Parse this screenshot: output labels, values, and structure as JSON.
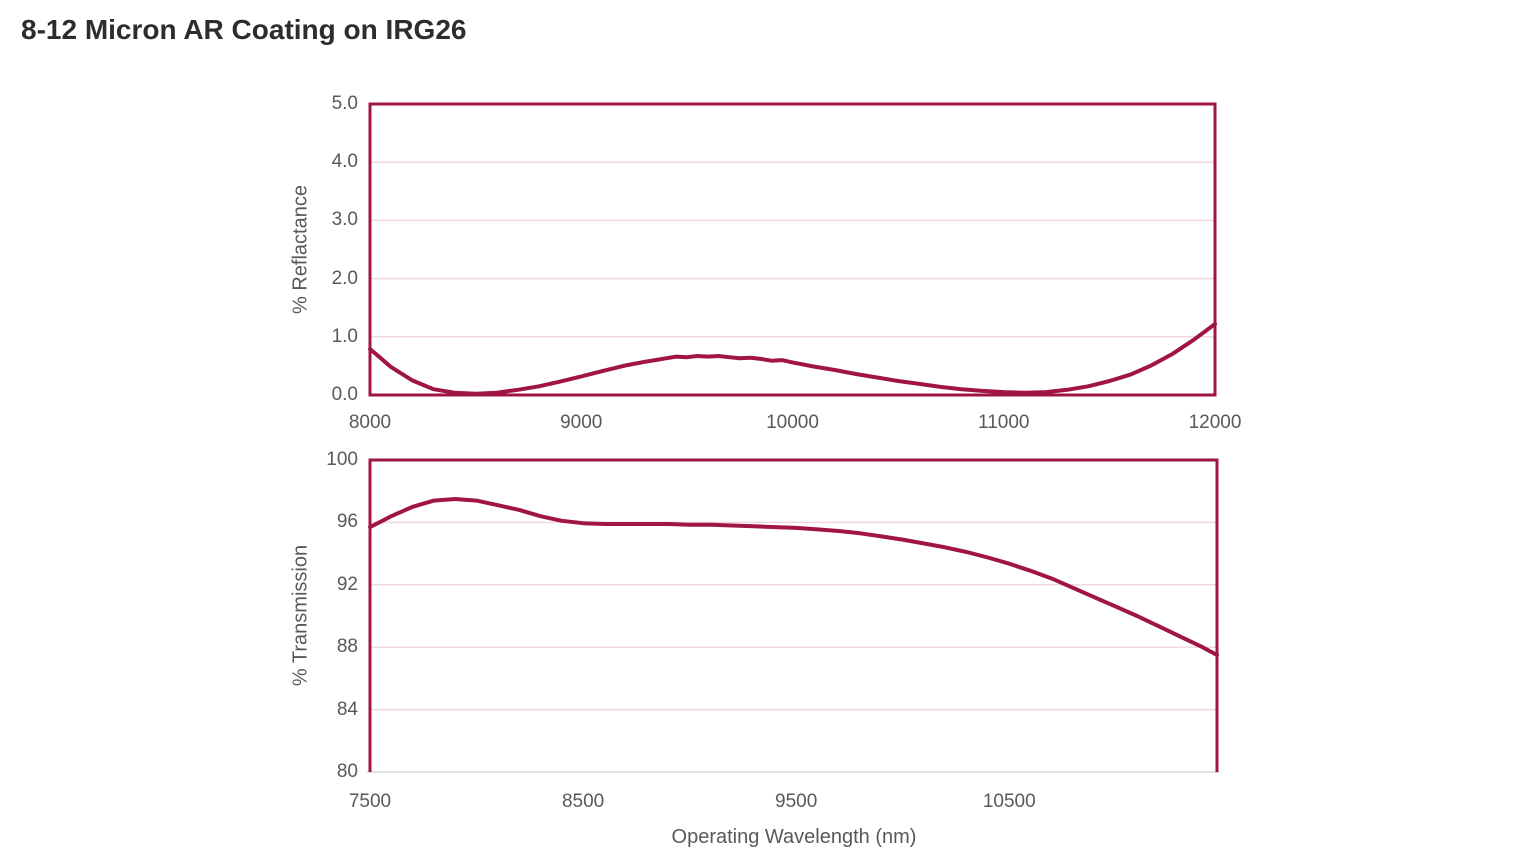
{
  "page": {
    "title": "8-12 Micron AR Coating on IRG26"
  },
  "colors": {
    "accent": "#A01545",
    "gridline": "#F2D9DE",
    "axis_line": "#D9D9D9",
    "tick_text": "#595959",
    "title_text": "#2D2D2D"
  },
  "chart_data": [
    {
      "type": "line",
      "title": "",
      "xlabel": "",
      "ylabel": "% Reflactance",
      "xlim": [
        8000,
        12000
      ],
      "ylim": [
        0,
        5
      ],
      "grid": "horizontal",
      "legend": "none",
      "xticks": [
        8000,
        9000,
        10000,
        11000,
        12000
      ],
      "xtick_labels": [
        "8000",
        "9000",
        "10000",
        "11000",
        "12000"
      ],
      "yticks": [
        0,
        1,
        2,
        3,
        4,
        5
      ],
      "ytick_labels": [
        "0.0",
        "1.0",
        "2.0",
        "3.0",
        "4.0",
        "5.0"
      ],
      "series": [
        {
          "name": "% Reflactance",
          "x": [
            8000,
            8100,
            8200,
            8300,
            8400,
            8500,
            8600,
            8700,
            8800,
            8900,
            9000,
            9100,
            9200,
            9300,
            9350,
            9400,
            9450,
            9500,
            9550,
            9600,
            9650,
            9700,
            9750,
            9800,
            9850,
            9900,
            9950,
            10000,
            10100,
            10200,
            10300,
            10400,
            10500,
            10600,
            10700,
            10800,
            10900,
            11000,
            11100,
            11200,
            11300,
            11400,
            11500,
            11600,
            11700,
            11800,
            11900,
            12000
          ],
          "y": [
            0.79,
            0.48,
            0.25,
            0.1,
            0.04,
            0.02,
            0.04,
            0.09,
            0.15,
            0.23,
            0.32,
            0.41,
            0.5,
            0.57,
            0.6,
            0.63,
            0.66,
            0.65,
            0.67,
            0.66,
            0.67,
            0.65,
            0.63,
            0.64,
            0.62,
            0.59,
            0.6,
            0.56,
            0.49,
            0.43,
            0.36,
            0.3,
            0.24,
            0.19,
            0.14,
            0.1,
            0.07,
            0.05,
            0.04,
            0.05,
            0.09,
            0.15,
            0.24,
            0.35,
            0.51,
            0.71,
            0.95,
            1.22
          ]
        }
      ]
    },
    {
      "type": "line",
      "title": "",
      "xlabel": "Operating Wavelength (nm)",
      "ylabel": "% Transmission",
      "xlim": [
        7500,
        11475
      ],
      "ylim": [
        80,
        100
      ],
      "grid": "horizontal",
      "legend": "none",
      "xticks": [
        7500,
        8500,
        9500,
        10500
      ],
      "xtick_labels": [
        "7500",
        "8500",
        "9500",
        "10500"
      ],
      "yticks": [
        80,
        84,
        88,
        92,
        96,
        100
      ],
      "ytick_labels": [
        "80",
        "84",
        "88",
        "92",
        "96",
        "100"
      ],
      "series": [
        {
          "name": "% Transmission",
          "x": [
            7500,
            7600,
            7700,
            7800,
            7900,
            8000,
            8100,
            8200,
            8300,
            8400,
            8500,
            8600,
            8700,
            8800,
            8900,
            9000,
            9100,
            9200,
            9300,
            9400,
            9500,
            9600,
            9700,
            9800,
            9900,
            10000,
            10100,
            10200,
            10300,
            10400,
            10500,
            10600,
            10700,
            10800,
            10900,
            11000,
            11100,
            11200,
            11300,
            11400,
            11475
          ],
          "y": [
            95.7,
            96.4,
            97.0,
            97.4,
            97.5,
            97.4,
            97.1,
            96.8,
            96.4,
            96.1,
            95.95,
            95.9,
            95.9,
            95.9,
            95.9,
            95.85,
            95.85,
            95.8,
            95.75,
            95.7,
            95.65,
            95.55,
            95.45,
            95.3,
            95.1,
            94.9,
            94.65,
            94.4,
            94.1,
            93.75,
            93.35,
            92.9,
            92.4,
            91.8,
            91.2,
            90.6,
            90.0,
            89.35,
            88.7,
            88.05,
            87.5
          ]
        }
      ]
    }
  ]
}
